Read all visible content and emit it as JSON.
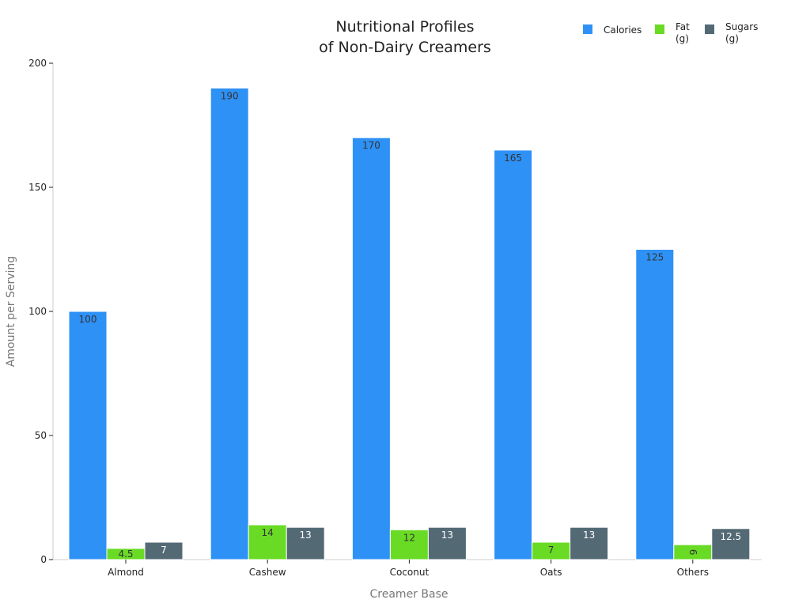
{
  "chart_data": {
    "type": "bar",
    "title_lines": [
      "Nutritional Profiles",
      "of Non-Dairy Creamers"
    ],
    "xlabel": "Creamer Base",
    "ylabel": "Amount per Serving",
    "categories": [
      "Almond",
      "Cashew",
      "Coconut",
      "Oats",
      "Others"
    ],
    "ylim": [
      0,
      200
    ],
    "yticks": [
      0,
      50,
      100,
      150,
      200
    ],
    "grid": false,
    "legend_position": "top-right",
    "series": [
      {
        "name_lines": [
          "Calories"
        ],
        "color": "#2e91f6",
        "label_color": "#333333",
        "values": [
          100,
          190,
          170,
          165,
          125
        ],
        "labels": [
          "100",
          "190",
          "170",
          "165",
          "125"
        ]
      },
      {
        "name_lines": [
          "Fat",
          "(g)"
        ],
        "color": "#69db24",
        "label_color": "#333333",
        "values": [
          4.5,
          14,
          12,
          7,
          6
        ],
        "labels": [
          "4.5",
          "14",
          "12",
          "7",
          "6"
        ]
      },
      {
        "name_lines": [
          "Sugars",
          "(g)"
        ],
        "color": "#536a75",
        "label_color": "#ffffff",
        "values": [
          7,
          13,
          13,
          13,
          12.5
        ],
        "labels": [
          "7",
          "13",
          "13",
          "13",
          "12.5"
        ]
      }
    ]
  }
}
